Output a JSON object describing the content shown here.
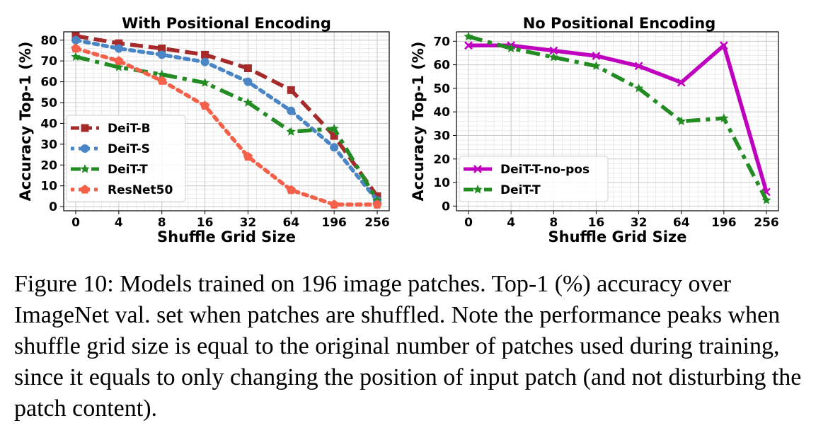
{
  "chart_data": [
    {
      "type": "line",
      "title": "With Positional Encoding",
      "xlabel": "Shuffle Grid Size",
      "ylabel": "Accuracy Top-1 (%)",
      "categories": [
        "0",
        "4",
        "8",
        "16",
        "32",
        "64",
        "196",
        "256"
      ],
      "yticks": [
        0,
        10,
        20,
        30,
        40,
        50,
        60,
        70,
        80
      ],
      "ylim": [
        -2,
        84
      ],
      "grid": true,
      "legend_position": "lower-left",
      "series": [
        {
          "name": "DeiT-B",
          "color": "#a52a2a",
          "marker": "square",
          "dash": "dashed",
          "values": [
            82,
            78.5,
            76,
            73,
            66.5,
            56,
            34,
            5
          ]
        },
        {
          "name": "DeiT-S",
          "color": "#4a86c6",
          "marker": "circle",
          "dash": "dotted",
          "values": [
            80,
            76,
            73,
            69.5,
            60,
            46,
            28.5,
            3
          ]
        },
        {
          "name": "DeiT-T",
          "color": "#228b22",
          "marker": "star",
          "dash": "dashdot",
          "values": [
            72,
            67,
            63.5,
            59.5,
            50,
            36,
            37.5,
            3
          ]
        },
        {
          "name": "ResNet50",
          "color": "#f5604a",
          "marker": "pentagon",
          "dash": "dotted",
          "values": [
            76,
            70,
            60.5,
            48.5,
            24,
            8,
            1,
            1
          ]
        }
      ]
    },
    {
      "type": "line",
      "title": "No Positional Encoding",
      "xlabel": "Shuffle Grid Size",
      "ylabel": "Accuracy Top-1 (%)",
      "categories": [
        "0",
        "4",
        "8",
        "16",
        "32",
        "64",
        "196",
        "256"
      ],
      "yticks": [
        0,
        10,
        20,
        30,
        40,
        50,
        60,
        70
      ],
      "ylim": [
        -2,
        74
      ],
      "grid": true,
      "legend_position": "lower-left",
      "series": [
        {
          "name": "DeiT-T-no-pos",
          "color": "#bf00bf",
          "marker": "x",
          "dash": "solid",
          "values": [
            68.2,
            68.2,
            66,
            63.8,
            59.5,
            52.5,
            68.2,
            6
          ]
        },
        {
          "name": "DeiT-T",
          "color": "#228b22",
          "marker": "star",
          "dash": "dashdot",
          "values": [
            72,
            67,
            63.2,
            59.5,
            50,
            36,
            37.3,
            2.5
          ]
        }
      ]
    }
  ],
  "caption": "Figure 10: Models trained on 196 image patches. Top-1 (%) accuracy over ImageNet val. set when patches are shuffled. Note the performance peaks when shuffle grid size is equal to the original number of patches used during training, since it equals to only changing the position of input patch (and not disturbing the patch content)."
}
